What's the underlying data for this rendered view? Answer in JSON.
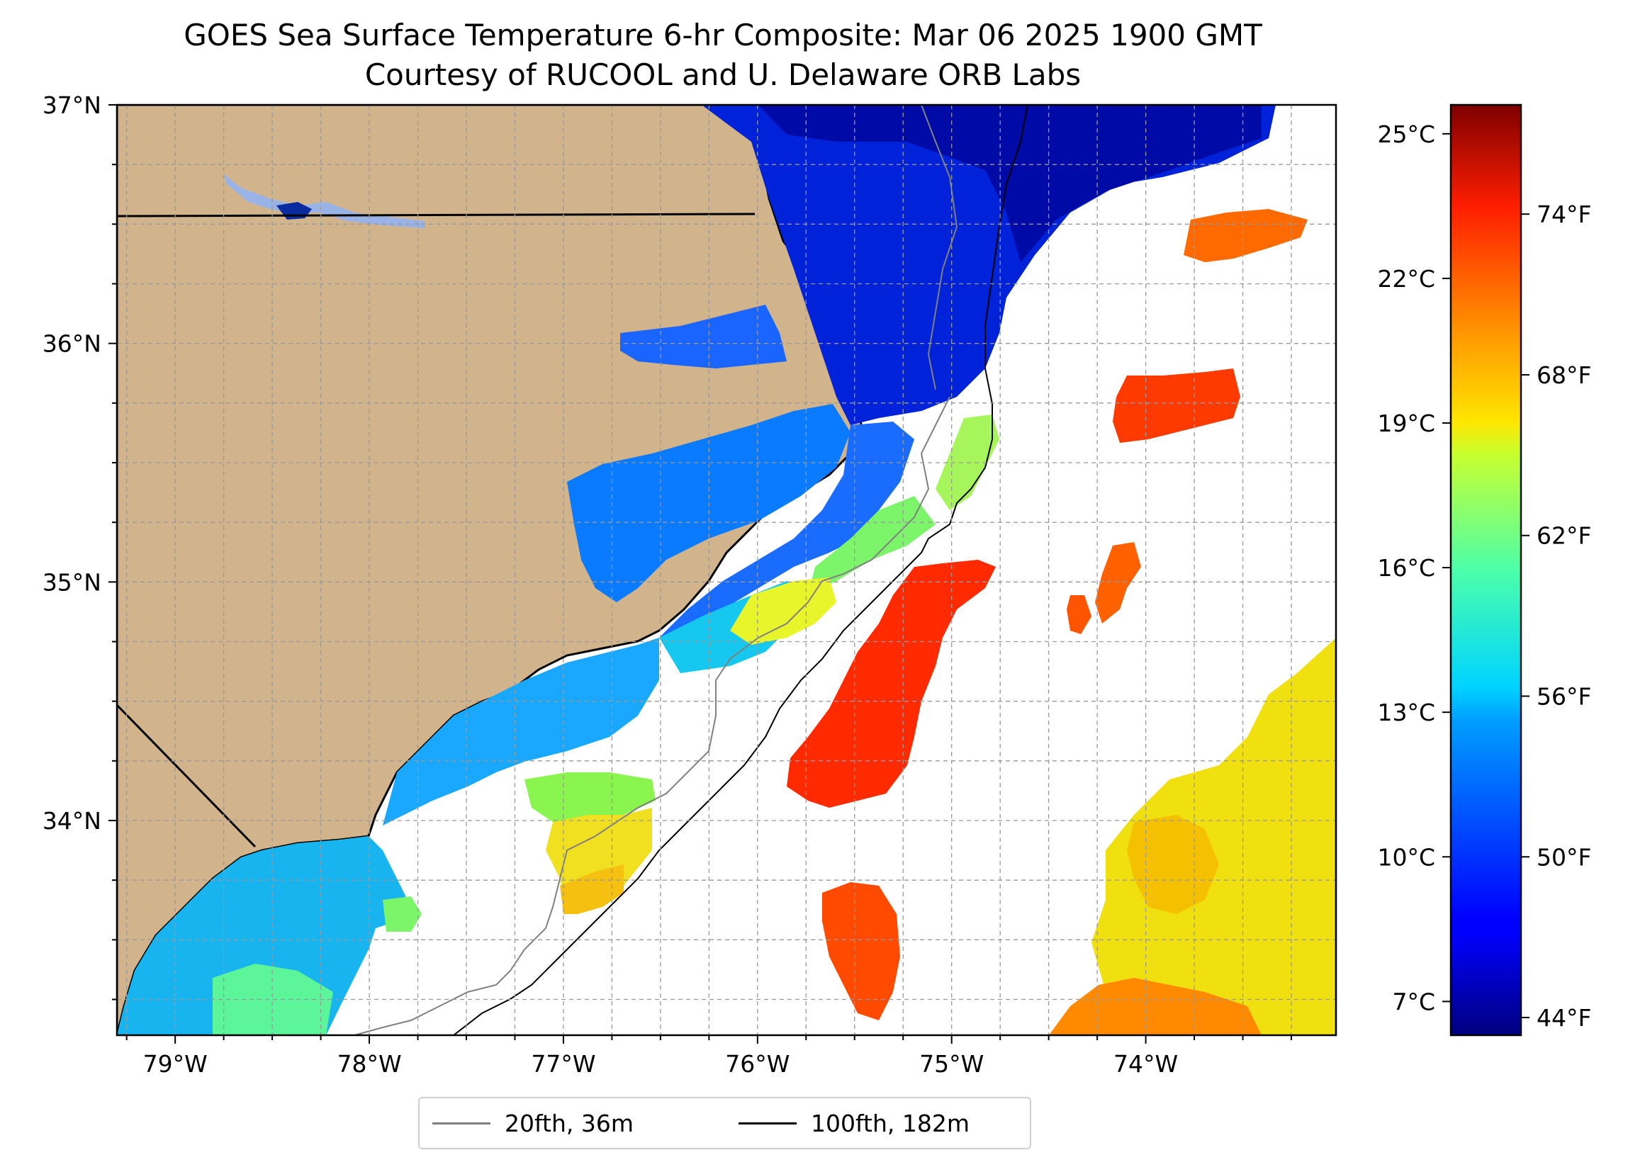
{
  "title": {
    "line1": "GOES Sea Surface Temperature 6-hr Composite: Mar 06 2025 1900 GMT",
    "line2": "Courtesy of RUCOOL and U. Delaware ORB Labs"
  },
  "map": {
    "extent": {
      "lon_min": -79.3,
      "lon_max": -73.02,
      "lat_min": 33.1,
      "lat_max": 37.0
    },
    "lon_ticks": [
      {
        "value": -79,
        "label": "79°W"
      },
      {
        "value": -78,
        "label": "78°W"
      },
      {
        "value": -77,
        "label": "77°W"
      },
      {
        "value": -76,
        "label": "76°W"
      },
      {
        "value": -75,
        "label": "75°W"
      },
      {
        "value": -74,
        "label": "74°W"
      }
    ],
    "lat_ticks": [
      {
        "value": 37,
        "label": "37°N"
      },
      {
        "value": 36,
        "label": "36°N"
      },
      {
        "value": 35,
        "label": "35°N"
      },
      {
        "value": 34,
        "label": "34°N"
      }
    ],
    "gridlines": true,
    "land_color": "#d2b48c",
    "water_fill_missing": "#ffffff"
  },
  "colorbar": {
    "colormap": "jet",
    "celsius_range": [
      6.3,
      25.6
    ],
    "celsius_ticks": [
      {
        "value": 25,
        "label": "25°C"
      },
      {
        "value": 22,
        "label": "22°C"
      },
      {
        "value": 19,
        "label": "19°C"
      },
      {
        "value": 16,
        "label": "16°C"
      },
      {
        "value": 13,
        "label": "13°C"
      },
      {
        "value": 10,
        "label": "10°C"
      },
      {
        "value": 7,
        "label": "7°C"
      }
    ],
    "fahrenheit_ticks": [
      {
        "value": 74,
        "label": "74°F"
      },
      {
        "value": 68,
        "label": "68°F"
      },
      {
        "value": 62,
        "label": "62°F"
      },
      {
        "value": 56,
        "label": "56°F"
      },
      {
        "value": 50,
        "label": "50°F"
      },
      {
        "value": 44,
        "label": "44°F"
      }
    ]
  },
  "legend": {
    "items": [
      {
        "label": "20fth, 36m",
        "color": "#808080"
      },
      {
        "label": "100fth, 182m",
        "color": "#000000"
      }
    ]
  }
}
